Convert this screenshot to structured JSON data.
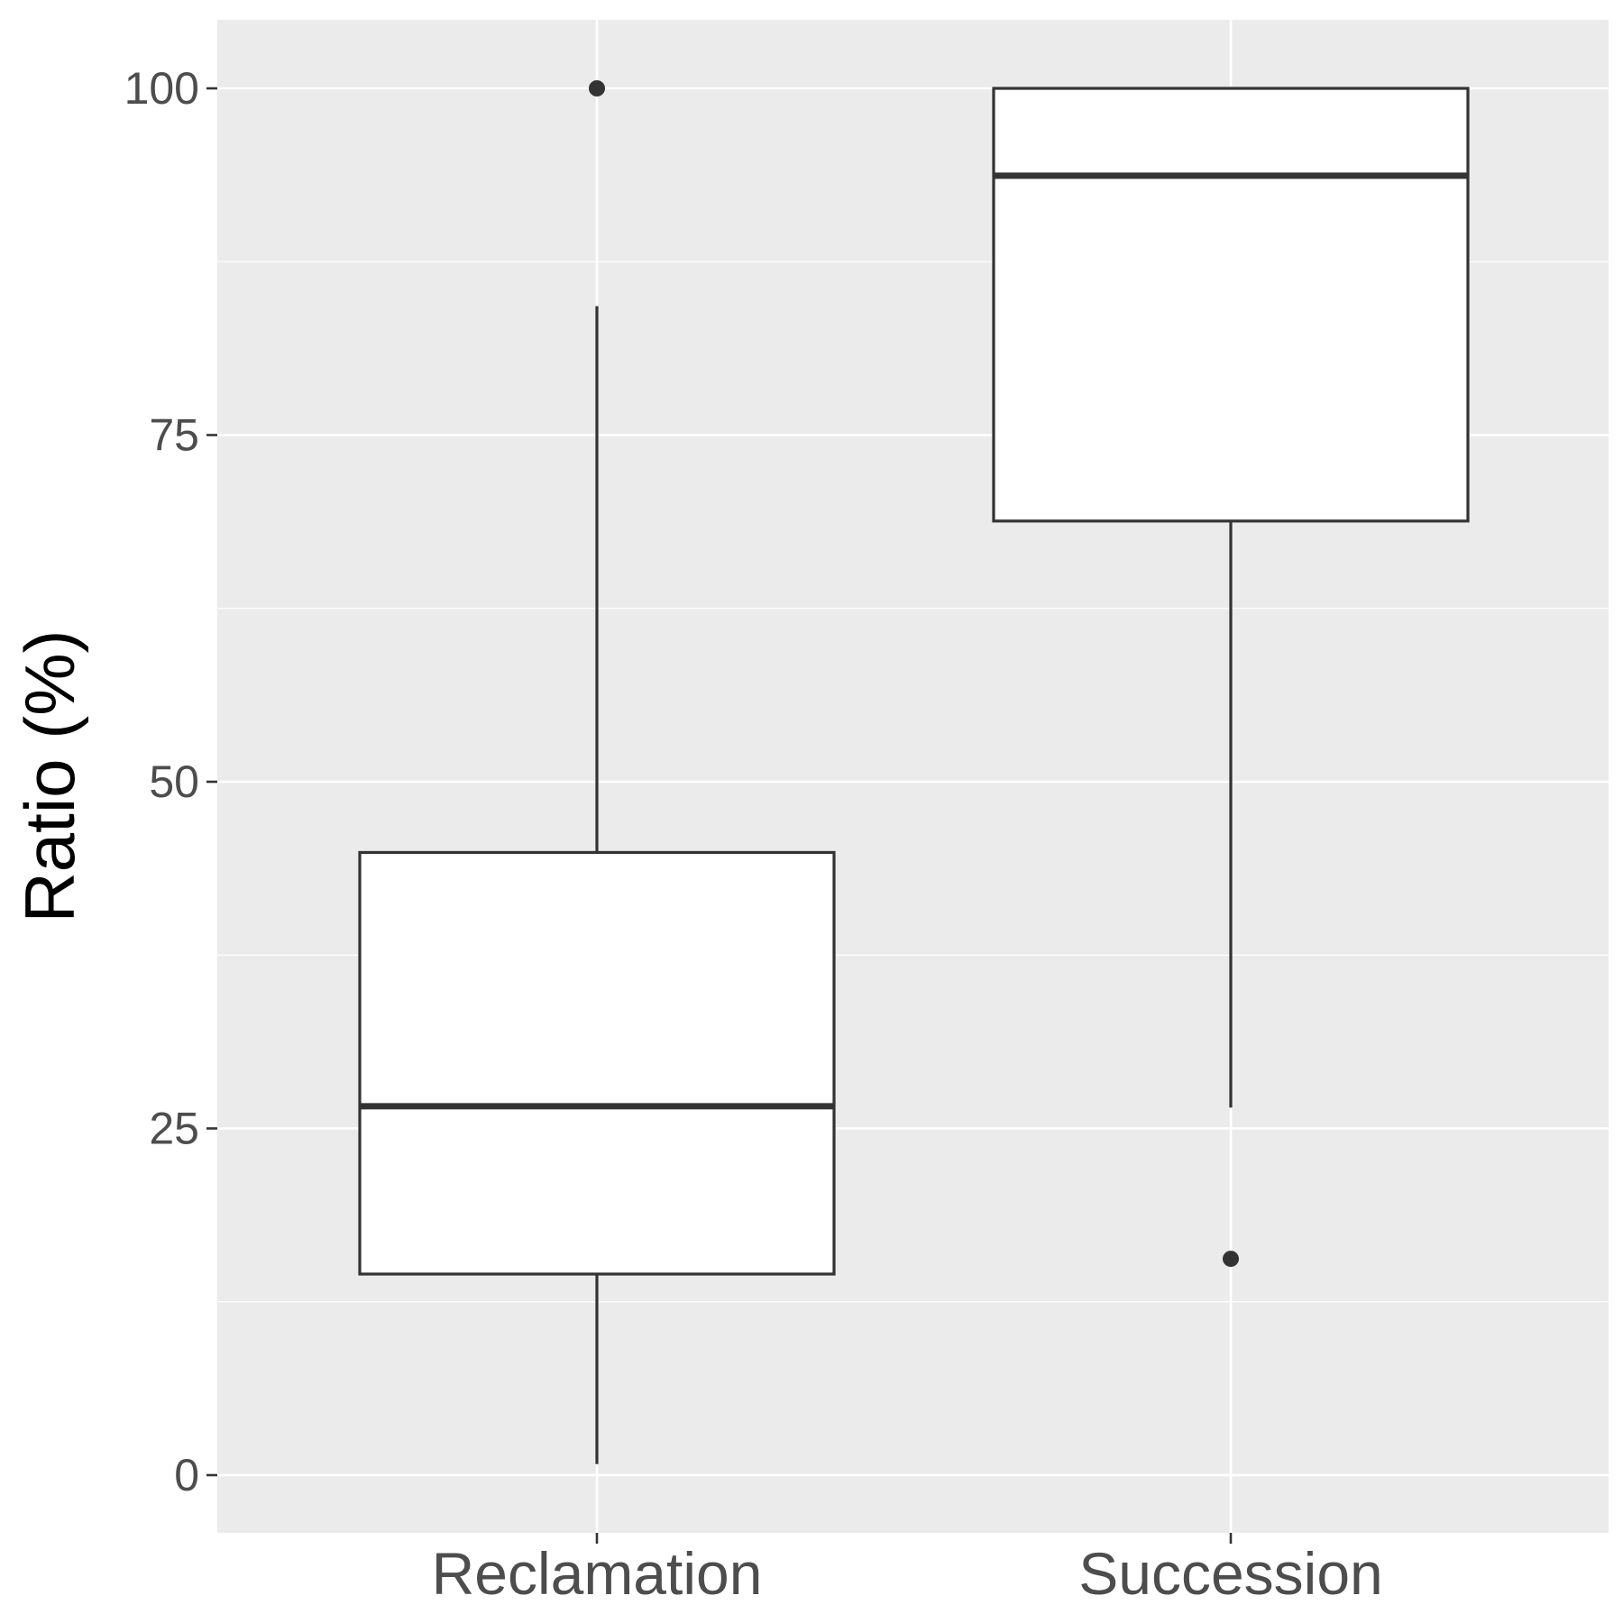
{
  "chart_data": {
    "type": "boxplot",
    "title": "",
    "xlabel": "",
    "ylabel": "Ratio (%)",
    "ylim": [
      -4.2,
      105
    ],
    "y_ticks": [
      0,
      25,
      50,
      75,
      100
    ],
    "y_tick_labels": [
      "0",
      "25",
      "50",
      "75",
      "100"
    ],
    "grid": true,
    "legend": "none",
    "categories": [
      "Reclamation",
      "Succession"
    ],
    "boxes": [
      {
        "category": "Reclamation",
        "whisker_low": 0.8,
        "q1": 14.5,
        "median": 26.6,
        "q3": 44.9,
        "whisker_high": 84.3,
        "outliers": [
          100
        ]
      },
      {
        "category": "Succession",
        "whisker_low": 26.5,
        "q1": 68.8,
        "median": 93.7,
        "q3": 100,
        "whisker_high": 100,
        "outliers": [
          15.6
        ]
      }
    ],
    "colors": {
      "panel_background": "#ebebeb",
      "grid_major": "#ffffff",
      "grid_minor": "#ffffff",
      "box_fill": "#ffffff",
      "box_line": "#333333",
      "tick_text": "#4d4d4d",
      "axis_title": "#000000"
    }
  }
}
